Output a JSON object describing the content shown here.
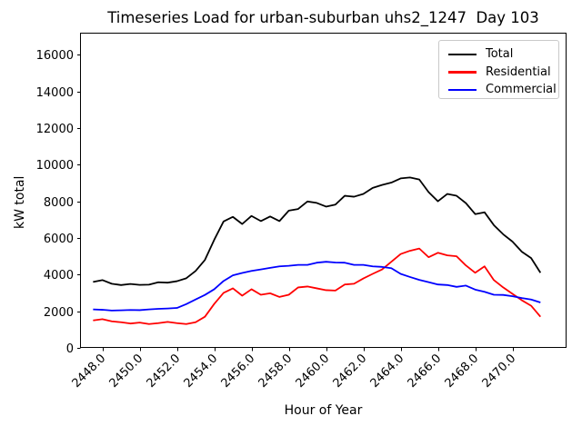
{
  "chart_data": {
    "type": "line",
    "title": "Timeseries Load for urban-suburban uhs2_1247  Day 103",
    "xlabel": "Hour of Year",
    "ylabel": "kW total",
    "grid": false,
    "legend_position": "upper right",
    "xlim": [
      2446.8,
      2472.9
    ],
    "ylim": [
      0,
      17200
    ],
    "x_ticks": [
      2448,
      2450,
      2452,
      2454,
      2456,
      2458,
      2460,
      2462,
      2464,
      2466,
      2468,
      2470
    ],
    "x_tick_labels": [
      "2448.0",
      "2450.0",
      "2452.0",
      "2454.0",
      "2456.0",
      "2458.0",
      "2460.0",
      "2462.0",
      "2464.0",
      "2466.0",
      "2468.0",
      "2470.0"
    ],
    "y_ticks": [
      0,
      2000,
      4000,
      6000,
      8000,
      10000,
      12000,
      14000,
      16000
    ],
    "y_tick_labels": [
      "0",
      "2000",
      "4000",
      "6000",
      "8000",
      "10000",
      "12000",
      "14000",
      "16000"
    ],
    "x": [
      2447.5,
      2448.0,
      2448.5,
      2449.0,
      2449.5,
      2450.0,
      2450.5,
      2451.0,
      2451.5,
      2452.0,
      2452.5,
      2453.0,
      2453.5,
      2454.0,
      2454.5,
      2455.0,
      2455.5,
      2456.0,
      2456.5,
      2457.0,
      2457.5,
      2458.0,
      2458.5,
      2459.0,
      2459.5,
      2460.0,
      2460.5,
      2461.0,
      2461.5,
      2462.0,
      2462.5,
      2463.0,
      2463.5,
      2464.0,
      2464.5,
      2465.0,
      2465.5,
      2466.0,
      2466.5,
      2467.0,
      2467.5,
      2468.0,
      2468.5,
      2469.0,
      2469.5,
      2470.0,
      2470.5,
      2471.0,
      2471.5
    ],
    "series": [
      {
        "name": "Total",
        "color": "#000000",
        "values": [
          3600,
          3700,
          3500,
          3430,
          3490,
          3440,
          3450,
          3580,
          3560,
          3640,
          3800,
          4200,
          4800,
          5900,
          6900,
          7150,
          6760,
          7200,
          6920,
          7170,
          6920,
          7490,
          7580,
          7990,
          7910,
          7710,
          7820,
          8300,
          8250,
          8400,
          8730,
          8890,
          9020,
          9250,
          9300,
          9190,
          8500,
          8000,
          8400,
          8300,
          7900,
          7300,
          7400,
          6700,
          6200,
          5800,
          5250,
          4900,
          4100
        ]
      },
      {
        "name": "Residential",
        "color": "#ff0000",
        "values": [
          1500,
          1570,
          1450,
          1400,
          1330,
          1380,
          1300,
          1350,
          1420,
          1350,
          1300,
          1400,
          1700,
          2400,
          3000,
          3250,
          2850,
          3200,
          2900,
          2980,
          2780,
          2900,
          3300,
          3350,
          3250,
          3150,
          3130,
          3460,
          3500,
          3790,
          4040,
          4280,
          4700,
          5120,
          5300,
          5420,
          4950,
          5190,
          5050,
          5000,
          4500,
          4100,
          4450,
          3700,
          3300,
          2950,
          2600,
          2300,
          1700
        ]
      },
      {
        "name": "Commercial",
        "color": "#0000ff",
        "values": [
          2100,
          2080,
          2040,
          2050,
          2070,
          2060,
          2100,
          2130,
          2150,
          2180,
          2390,
          2640,
          2890,
          3200,
          3650,
          3960,
          4090,
          4200,
          4280,
          4370,
          4450,
          4480,
          4530,
          4530,
          4650,
          4700,
          4660,
          4650,
          4530,
          4530,
          4450,
          4420,
          4350,
          4040,
          3870,
          3710,
          3590,
          3460,
          3430,
          3330,
          3400,
          3180,
          3060,
          2900,
          2890,
          2820,
          2720,
          2640,
          2480
        ]
      }
    ]
  }
}
